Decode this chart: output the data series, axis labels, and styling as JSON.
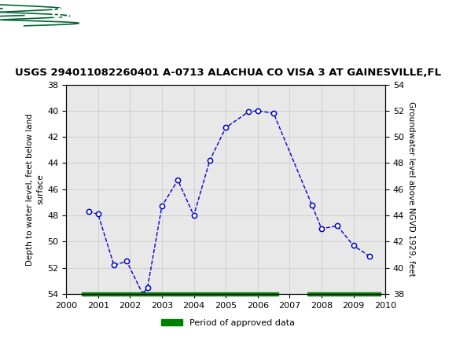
{
  "title": "USGS 294011082260401 A-0713 ALACHUA CO VISA 3 AT GAINESVILLE,FL",
  "ylabel_left": "Depth to water level, feet below land\nsurface",
  "ylabel_right": "Groundwater level above NGVD 1929, feet",
  "xlim": [
    2000,
    2010
  ],
  "ylim_left": [
    54,
    38
  ],
  "ylim_right": [
    38,
    54
  ],
  "xticks": [
    2000,
    2001,
    2002,
    2003,
    2004,
    2005,
    2006,
    2007,
    2008,
    2009,
    2010
  ],
  "yticks_left": [
    38,
    40,
    42,
    44,
    46,
    48,
    50,
    52,
    54
  ],
  "yticks_right": [
    38,
    40,
    42,
    44,
    46,
    48,
    50,
    52,
    54
  ],
  "data_x": [
    2000.7,
    2001.0,
    2001.5,
    2001.9,
    2002.4,
    2002.55,
    2003.0,
    2003.5,
    2004.0,
    2004.5,
    2005.0,
    2005.7,
    2006.0,
    2006.5,
    2007.7,
    2008.0,
    2008.5,
    2009.0,
    2009.5
  ],
  "data_y": [
    47.7,
    47.9,
    51.8,
    51.5,
    54.0,
    53.5,
    47.3,
    45.3,
    48.0,
    43.8,
    41.3,
    40.1,
    40.0,
    40.2,
    47.2,
    49.0,
    48.8,
    50.3,
    51.1
  ],
  "line_color": "#0000cc",
  "marker_color": "#0000cc",
  "marker_face": "white",
  "approved_bar1_x0": 2000.5,
  "approved_bar1_x1": 2006.65,
  "approved_bar2_x0": 2007.55,
  "approved_bar2_x1": 2009.85,
  "approved_bar_y": 54.0,
  "approved_bar_height": 0.28,
  "approved_label": "Period of approved data",
  "approved_color": "#008000",
  "header_bg": "#006633",
  "header_text_color": "#ffffff",
  "bg_color": "#ffffff",
  "plot_bg": "#e8e8e8",
  "grid_color": "#cccccc",
  "title_fontsize": 9.5,
  "axis_label_fontsize": 7.5,
  "tick_fontsize": 8
}
